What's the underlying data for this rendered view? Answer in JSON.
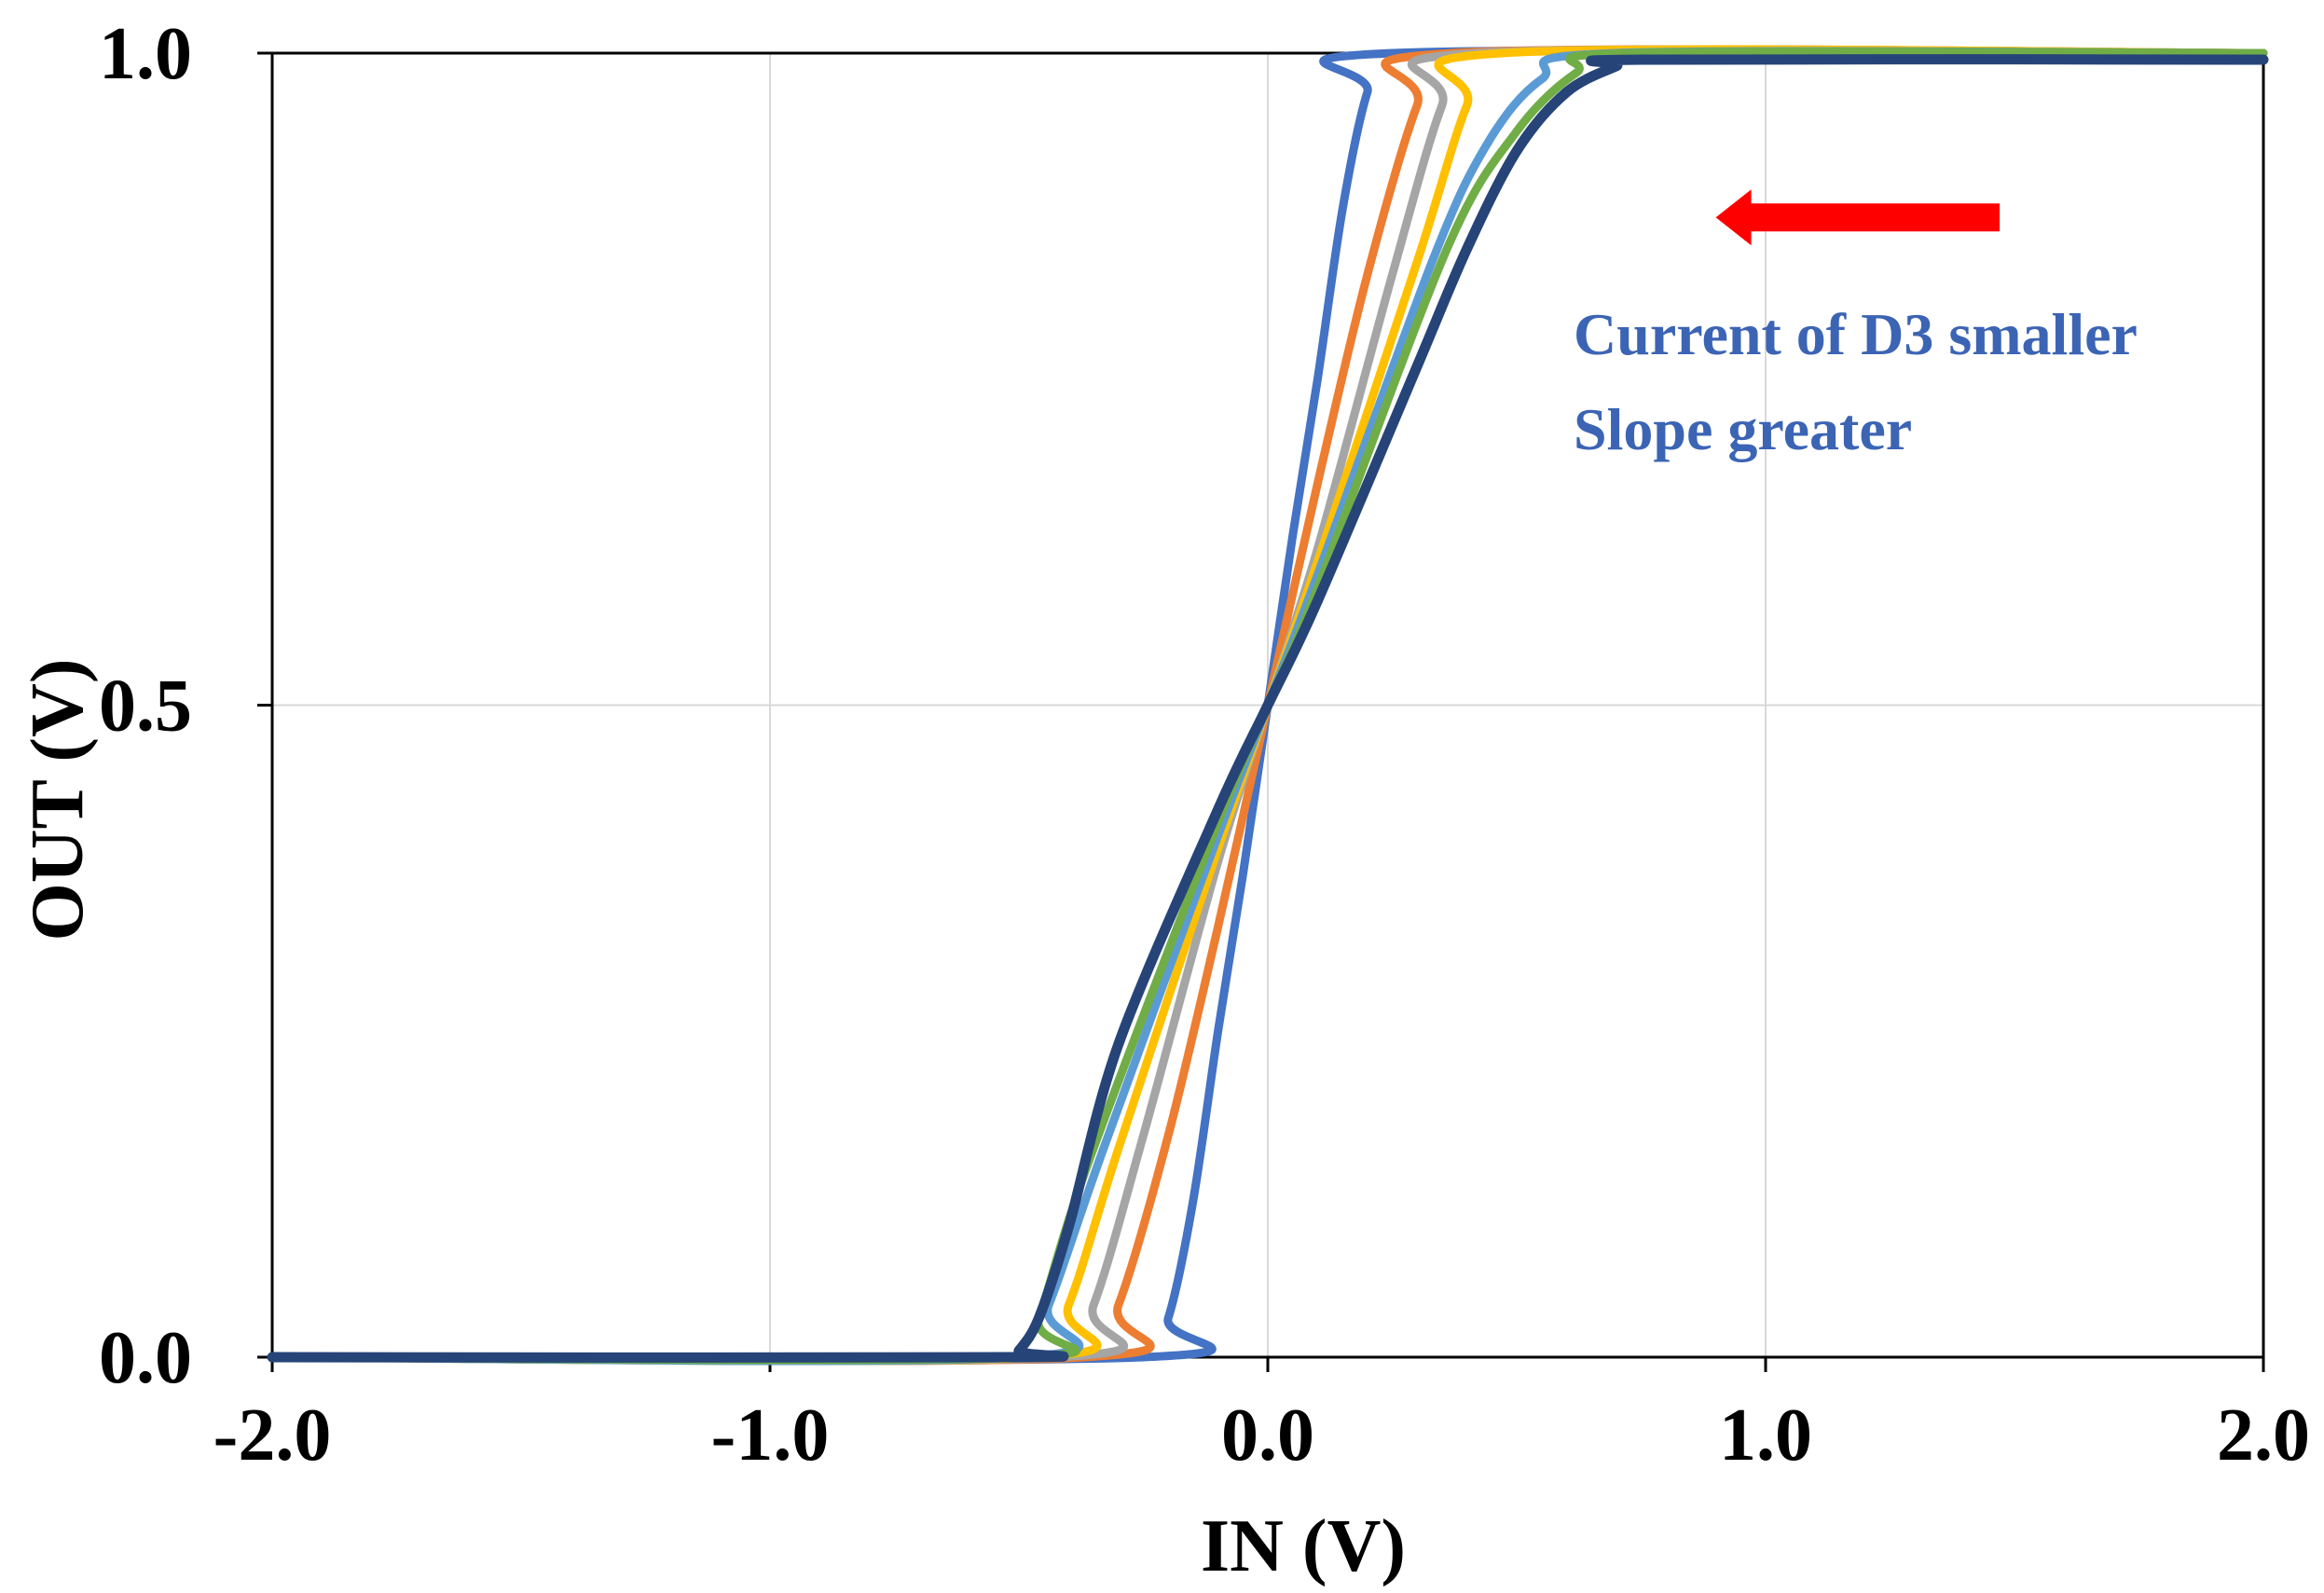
{
  "chart_data": {
    "type": "line",
    "xlabel": "IN (V)",
    "ylabel": "OUT (V)",
    "xlim": [
      -2.0,
      2.0
    ],
    "ylim": [
      0.0,
      1.0
    ],
    "xticks": [
      -2.0,
      -1.0,
      0.0,
      1.0,
      2.0
    ],
    "xtick_labels": [
      "-2.0",
      "-1.0",
      "0.0",
      "1.0",
      "2.0"
    ],
    "yticks": [
      0.0,
      0.5,
      1.0
    ],
    "ytick_labels": [
      "0.0",
      "0.5",
      "1.0"
    ],
    "grid": true,
    "annotation": {
      "lines": [
        "Current of D3 smaller",
        "Slope greater"
      ],
      "color": "#3C64B4",
      "arrow_color": "#FF0000",
      "arrow_direction": "left",
      "arrow_from": [
        1.47,
        0.874
      ],
      "arrow_to": [
        0.9,
        0.874
      ]
    },
    "series": [
      {
        "color": "#4472C4",
        "x": [
          -2.0,
          -0.25,
          -0.2,
          -0.15,
          -0.1,
          -0.05,
          0.0,
          0.05,
          0.1,
          0.15,
          0.2,
          0.25,
          2.0
        ],
        "y": [
          0.0,
          0.0,
          0.03,
          0.12,
          0.25,
          0.37,
          0.5,
          0.63,
          0.75,
          0.88,
          0.97,
          1.0,
          1.0
        ]
      },
      {
        "color": "#ED7D31",
        "x": [
          -2.0,
          -0.37,
          -0.3,
          -0.2,
          -0.1,
          0.0,
          0.1,
          0.2,
          0.3,
          0.37,
          2.0
        ],
        "y": [
          0.0,
          0.0,
          0.04,
          0.17,
          0.33,
          0.5,
          0.67,
          0.83,
          0.96,
          1.0,
          1.0
        ]
      },
      {
        "color": "#A5A5A5",
        "x": [
          -2.0,
          -0.42,
          -0.35,
          -0.25,
          -0.1,
          0.0,
          0.1,
          0.25,
          0.35,
          0.42,
          2.0
        ],
        "y": [
          0.0,
          0.0,
          0.04,
          0.17,
          0.38,
          0.5,
          0.62,
          0.83,
          0.96,
          1.0,
          1.0
        ]
      },
      {
        "color": "#FFC000",
        "x": [
          -2.0,
          -0.47,
          -0.4,
          -0.3,
          -0.1,
          0.0,
          0.1,
          0.3,
          0.4,
          0.47,
          2.0
        ],
        "y": [
          0.0,
          0.0,
          0.04,
          0.16,
          0.39,
          0.5,
          0.61,
          0.84,
          0.96,
          1.0,
          1.0
        ]
      },
      {
        "color": "#5B9BD5",
        "x": [
          -2.0,
          -0.5,
          -0.44,
          -0.33,
          -0.1,
          0.0,
          0.1,
          0.33,
          0.44,
          0.55,
          0.7,
          2.0
        ],
        "y": [
          0.0,
          0.0,
          0.04,
          0.16,
          0.4,
          0.5,
          0.6,
          0.84,
          0.93,
          0.98,
          1.0,
          1.0
        ]
      },
      {
        "color": "#70AD47",
        "x": [
          -2.0,
          -0.5,
          -0.46,
          -0.36,
          -0.1,
          0.0,
          0.1,
          0.36,
          0.5,
          0.62,
          0.73,
          2.0
        ],
        "y": [
          0.0,
          0.0,
          0.03,
          0.15,
          0.41,
          0.5,
          0.59,
          0.85,
          0.94,
          0.985,
          1.0,
          1.0
        ]
      },
      {
        "color": "#264478",
        "x": [
          -2.0,
          -0.52,
          -0.5,
          -0.46,
          -0.4,
          -0.3,
          -0.1,
          0.0,
          0.1,
          0.3,
          0.4,
          0.5,
          0.6,
          0.7,
          0.75,
          2.0
        ],
        "y": [
          0.0,
          0.0,
          0.005,
          0.03,
          0.1,
          0.24,
          0.42,
          0.5,
          0.58,
          0.76,
          0.85,
          0.925,
          0.97,
          0.99,
          0.995,
          0.995
        ]
      }
    ]
  }
}
